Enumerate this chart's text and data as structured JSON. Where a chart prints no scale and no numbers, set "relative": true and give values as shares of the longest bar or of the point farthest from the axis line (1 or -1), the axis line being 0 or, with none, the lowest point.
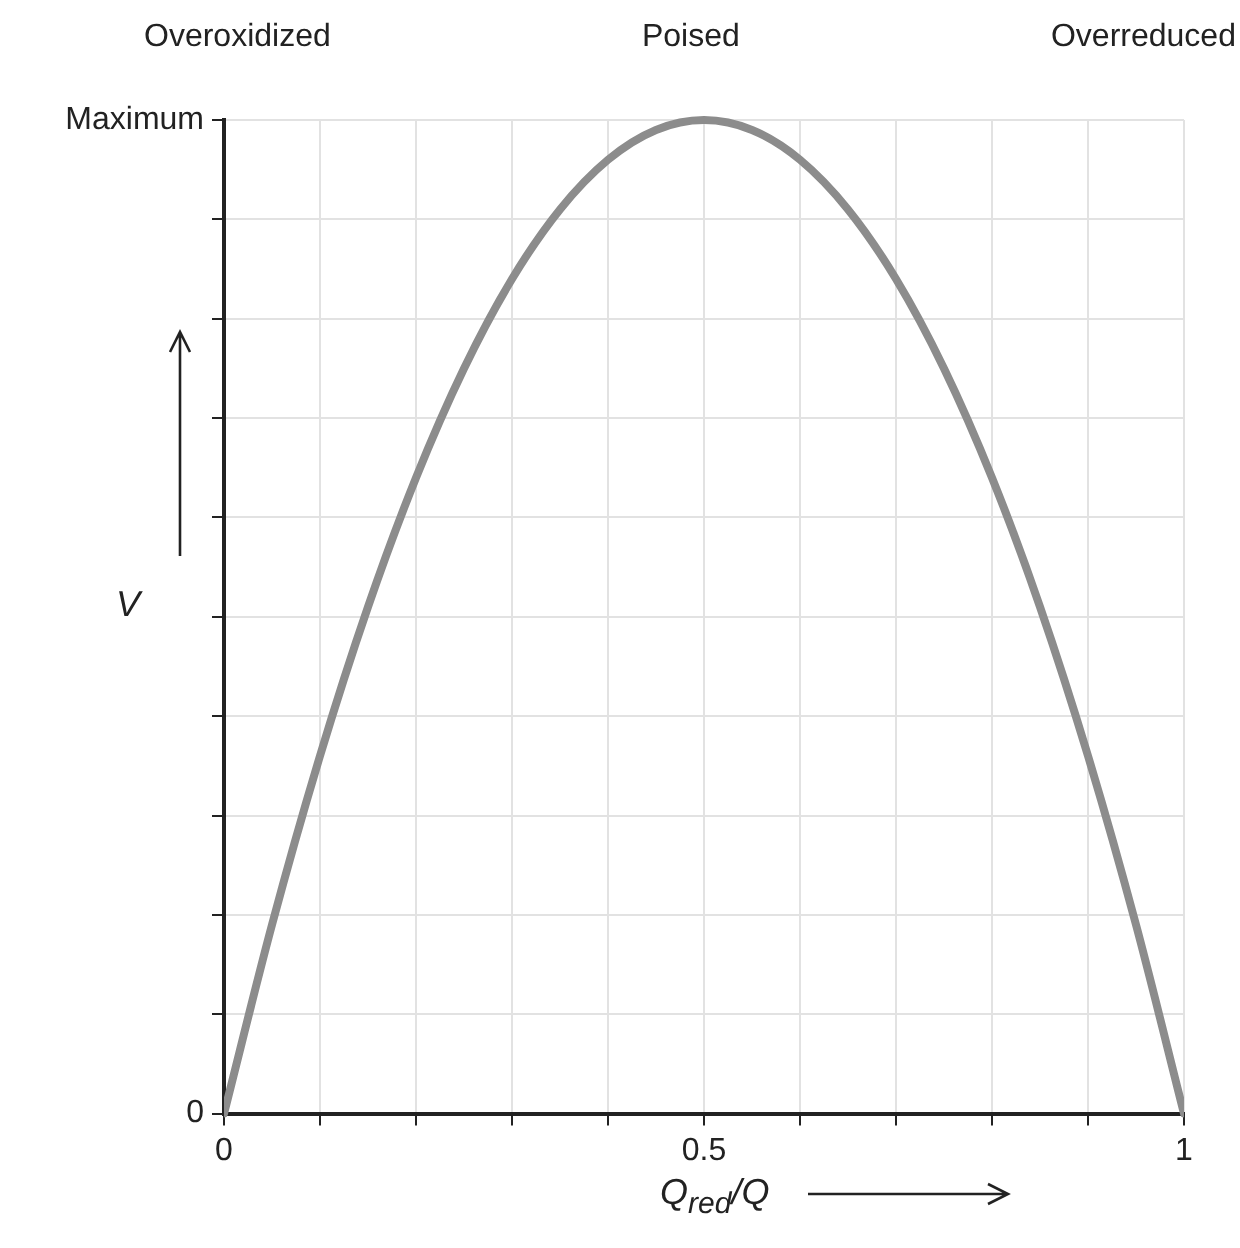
{
  "chart_data": {
    "type": "line",
    "xlabel": "Q$_{red}$/Q",
    "ylabel": "V",
    "annotations": [
      "Overoxidized",
      "Poised",
      "Overreduced",
      "Maximum",
      "0"
    ],
    "relative": true,
    "x": [
      0,
      0.05,
      0.1,
      0.15,
      0.2,
      0.25,
      0.3,
      0.35,
      0.4,
      0.45,
      0.5,
      0.55,
      0.6,
      0.65,
      0.7,
      0.75,
      0.8,
      0.85,
      0.9,
      0.95,
      1
    ],
    "series": [
      {
        "color": "#8c8c8c",
        "values": [
          0,
          0.19,
          0.36,
          0.51,
          0.64,
          0.75,
          0.84,
          0.91,
          0.96,
          0.99,
          1,
          0.99,
          0.96,
          0.91,
          0.84,
          0.75,
          0.64,
          0.51,
          0.36,
          0.19,
          0
        ]
      }
    ],
    "xlim": [
      0,
      1
    ],
    "xticks": [
      0,
      {
        "value": 0.1,
        "label": null
      },
      {
        "value": 0.2,
        "label": null
      },
      {
        "value": 0.3,
        "label": null
      },
      {
        "value": 0.4,
        "label": null
      },
      0.5,
      {
        "value": 0.6,
        "label": null
      },
      {
        "value": 0.7,
        "label": null
      },
      {
        "value": 0.8,
        "label": null
      },
      {
        "value": 0.9,
        "label": null
      },
      1
    ],
    "grid": true,
    "legend": false,
    "marker": "none",
    "line_style": "solid"
  }
}
